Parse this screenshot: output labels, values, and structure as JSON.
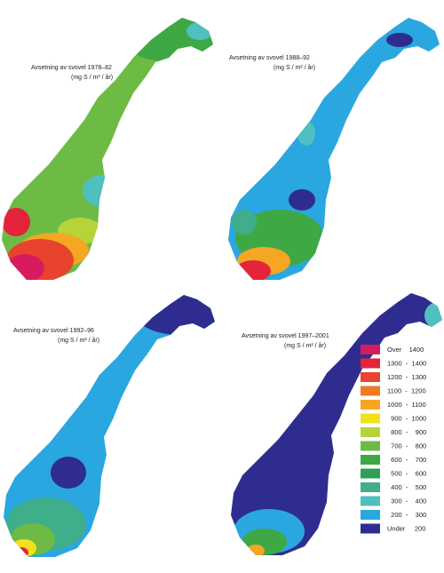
{
  "maps": [
    {
      "title": "Avsetning av svovel 1978–82",
      "unit": "(mg S / m² / år)"
    },
    {
      "title": "Avsetning av svovel 1988–92",
      "unit": "(mg S / m² / år)"
    },
    {
      "title": "Avsetning av svovel 1992–96",
      "unit": "(mg S / m² / år)"
    },
    {
      "title": "Avsetning av svovel 1997–2001",
      "unit": "(mg S / m² / år)"
    }
  ],
  "legend": [
    {
      "color": "#d81b60",
      "label": "Over    1400"
    },
    {
      "color": "#e3243b",
      "label": "1300  -  1400"
    },
    {
      "color": "#e8432e",
      "label": "1200  -  1300"
    },
    {
      "color": "#f07a22",
      "label": "1100  -  1200"
    },
    {
      "color": "#f5a623",
      "label": "1000  -  1100"
    },
    {
      "color": "#f2e11a",
      "label": "  900  -  1000"
    },
    {
      "color": "#b6d33a",
      "label": "  800  -    900"
    },
    {
      "color": "#6dbb45",
      "label": "  700  -    800"
    },
    {
      "color": "#3ea845",
      "label": "  600  -    700"
    },
    {
      "color": "#2f9e57",
      "label": "  500  -    600"
    },
    {
      "color": "#3fae8a",
      "label": "  400  -    500"
    },
    {
      "color": "#4fbfc0",
      "label": "  300  -    400"
    },
    {
      "color": "#2aa7e0",
      "label": "  200  -    300"
    },
    {
      "color": "#2e2d8f",
      "label": "Under     200"
    }
  ]
}
